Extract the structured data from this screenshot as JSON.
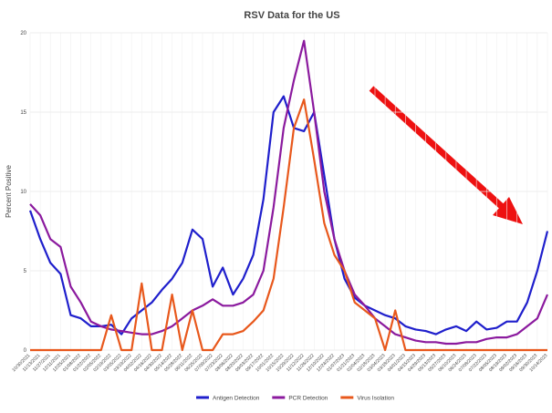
{
  "chart_data": {
    "type": "line",
    "title": "RSV Data for the US",
    "ylabel": "Percent Positive",
    "categories": [
      "10/30/2021",
      "11/13/2021",
      "11/27/2021",
      "12/11/2021",
      "12/25/2021",
      "01/08/2022",
      "01/22/2022",
      "02/05/2022",
      "02/19/2022",
      "03/05/2022",
      "03/19/2022",
      "04/02/2022",
      "04/16/2022",
      "04/30/2022",
      "05/14/2022",
      "05/28/2022",
      "06/11/2022",
      "06/25/2022",
      "07/09/2022",
      "07/23/2022",
      "08/06/2022",
      "08/20/2022",
      "09/03/2022",
      "09/17/2022",
      "10/01/2022",
      "10/15/2022",
      "10/29/2022",
      "11/12/2022",
      "11/26/2022",
      "12/10/2022",
      "12/24/2022",
      "01/07/2023",
      "01/21/2023",
      "02/04/2023",
      "02/18/2023",
      "03/04/2023",
      "03/18/2023",
      "04/01/2023",
      "04/15/2023",
      "04/29/2023",
      "05/13/2023",
      "05/27/2023",
      "06/10/2023",
      "06/24/2023",
      "07/08/2023",
      "07/22/2023",
      "08/05/2023",
      "08/19/2023",
      "09/02/2023",
      "09/16/2023",
      "09/30/2023",
      "10/14/2023"
    ],
    "series": [
      {
        "name": "Antigen Detection",
        "color": "#1f1fcc",
        "values": [
          8.8,
          7,
          5.5,
          4.8,
          2.2,
          2.0,
          1.5,
          1.5,
          1.6,
          1.0,
          2.0,
          2.5,
          3.0,
          3.8,
          4.5,
          5.5,
          7.6,
          7.0,
          4.0,
          5.2,
          3.5,
          4.5,
          6.0,
          9.5,
          15,
          16,
          14,
          13.8,
          15,
          11,
          7,
          4.5,
          3.3,
          2.8,
          2.5,
          2.2,
          2.0,
          1.5,
          1.3,
          1.2,
          1.0,
          1.3,
          1.5,
          1.2,
          1.8,
          1.3,
          1.4,
          1.8,
          1.8,
          3.0,
          5.0,
          7.5
        ]
      },
      {
        "name": "PCR Detection",
        "color": "#8b1a9e",
        "values": [
          9.2,
          8.5,
          7.0,
          6.5,
          4.0,
          3.0,
          1.8,
          1.5,
          1.3,
          1.2,
          1.1,
          1.0,
          1.0,
          1.2,
          1.5,
          2.0,
          2.5,
          2.8,
          3.2,
          2.8,
          2.8,
          3.0,
          3.5,
          5.0,
          9,
          14,
          17,
          19.5,
          15,
          10,
          7,
          5,
          3.5,
          2.8,
          2.0,
          1.5,
          1.0,
          0.8,
          0.6,
          0.5,
          0.5,
          0.4,
          0.4,
          0.5,
          0.5,
          0.7,
          0.8,
          0.8,
          1.0,
          1.5,
          2.0,
          3.5
        ]
      },
      {
        "name": "Virus Isolation",
        "color": "#e8581c",
        "values": [
          0,
          0,
          0,
          0,
          0,
          0,
          0,
          0,
          2.2,
          0,
          0,
          4.2,
          0,
          0,
          3.5,
          0,
          2.5,
          0,
          0,
          1.0,
          1.0,
          1.2,
          1.8,
          2.5,
          4.5,
          9,
          14,
          15.8,
          12,
          8,
          6,
          5,
          3.0,
          2.5,
          2.0,
          0,
          2.5,
          0,
          0,
          0,
          0,
          0,
          0,
          0,
          0,
          0,
          0,
          0,
          0,
          0,
          0,
          0
        ]
      }
    ],
    "ylim": [
      0,
      20
    ],
    "yticks": [
      0,
      5,
      10,
      15,
      20
    ],
    "grid": true,
    "legend": "bottom"
  }
}
